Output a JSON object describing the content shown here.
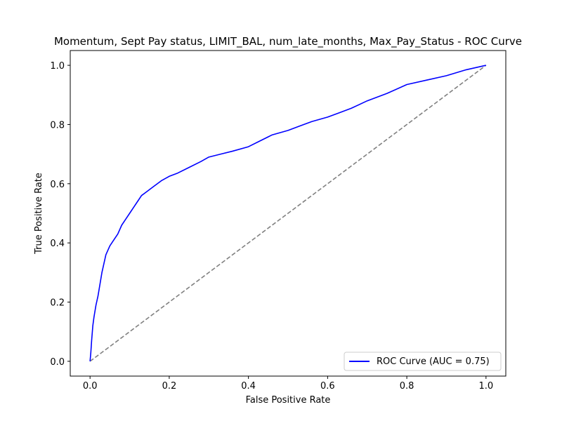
{
  "chart_data": {
    "type": "line",
    "title": "Momentum, Sept Pay status, LIMIT_BAL, num_late_months, Max_Pay_Status - ROC Curve",
    "xlabel": "False Positive Rate",
    "ylabel": "True Positive Rate",
    "xlim": [
      -0.05,
      1.05
    ],
    "ylim": [
      -0.05,
      1.05
    ],
    "xticks": [
      0.0,
      0.2,
      0.4,
      0.6,
      0.8,
      1.0
    ],
    "xtick_labels": [
      "0.0",
      "0.2",
      "0.4",
      "0.6",
      "0.8",
      "1.0"
    ],
    "yticks": [
      0.0,
      0.2,
      0.4,
      0.6,
      0.8,
      1.0
    ],
    "ytick_labels": [
      "0.0",
      "0.2",
      "0.4",
      "0.6",
      "0.8",
      "1.0"
    ],
    "grid": false,
    "legend_position": "lower-right",
    "series": [
      {
        "name": "ROC Curve (AUC = 0.75)",
        "color": "#0000ff",
        "style": "solid",
        "x": [
          0.0,
          0.002,
          0.004,
          0.007,
          0.01,
          0.015,
          0.02,
          0.025,
          0.03,
          0.035,
          0.04,
          0.05,
          0.06,
          0.07,
          0.08,
          0.09,
          0.1,
          0.11,
          0.12,
          0.13,
          0.14,
          0.15,
          0.16,
          0.18,
          0.2,
          0.22,
          0.25,
          0.28,
          0.3,
          0.33,
          0.36,
          0.4,
          0.43,
          0.46,
          0.5,
          0.53,
          0.56,
          0.6,
          0.63,
          0.66,
          0.7,
          0.75,
          0.8,
          0.85,
          0.9,
          0.95,
          1.0
        ],
        "y": [
          0.0,
          0.03,
          0.07,
          0.12,
          0.15,
          0.19,
          0.22,
          0.26,
          0.3,
          0.33,
          0.36,
          0.39,
          0.41,
          0.43,
          0.46,
          0.48,
          0.5,
          0.52,
          0.54,
          0.56,
          0.57,
          0.58,
          0.59,
          0.61,
          0.625,
          0.635,
          0.655,
          0.675,
          0.69,
          0.7,
          0.71,
          0.725,
          0.745,
          0.765,
          0.78,
          0.795,
          0.81,
          0.825,
          0.84,
          0.855,
          0.88,
          0.905,
          0.935,
          0.95,
          0.965,
          0.985,
          1.0
        ]
      },
      {
        "name": "",
        "color": "#808080",
        "style": "dashed",
        "x": [
          0.0,
          1.0
        ],
        "y": [
          0.0,
          1.0
        ]
      }
    ]
  }
}
